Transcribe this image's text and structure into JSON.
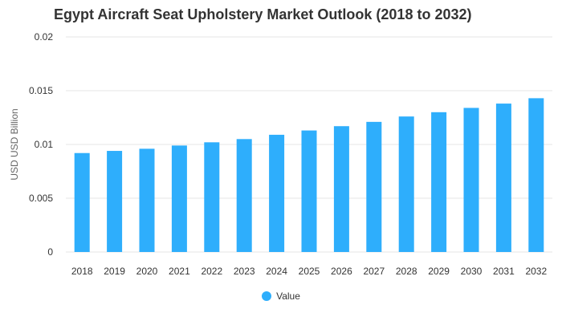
{
  "chart_data": {
    "type": "bar",
    "title": "Egypt Aircraft Seat Upholstery Market Outlook (2018 to 2032)",
    "ylabel": "USD USD Billion",
    "xlabel": "",
    "categories": [
      "2018",
      "2019",
      "2020",
      "2021",
      "2022",
      "2023",
      "2024",
      "2025",
      "2026",
      "2027",
      "2028",
      "2029",
      "2030",
      "2031",
      "2032"
    ],
    "series": [
      {
        "name": "Value",
        "values": [
          0.0092,
          0.0094,
          0.0096,
          0.0099,
          0.0102,
          0.0105,
          0.0109,
          0.0113,
          0.0117,
          0.0121,
          0.0126,
          0.013,
          0.0134,
          0.0138,
          0.0143
        ],
        "color": "#2eaefc"
      }
    ],
    "ylim": [
      0,
      0.02
    ],
    "yticks": [
      "0",
      "0.005",
      "0.01",
      "0.015",
      "0.02"
    ],
    "grid": true,
    "legend_position": "bottom"
  }
}
